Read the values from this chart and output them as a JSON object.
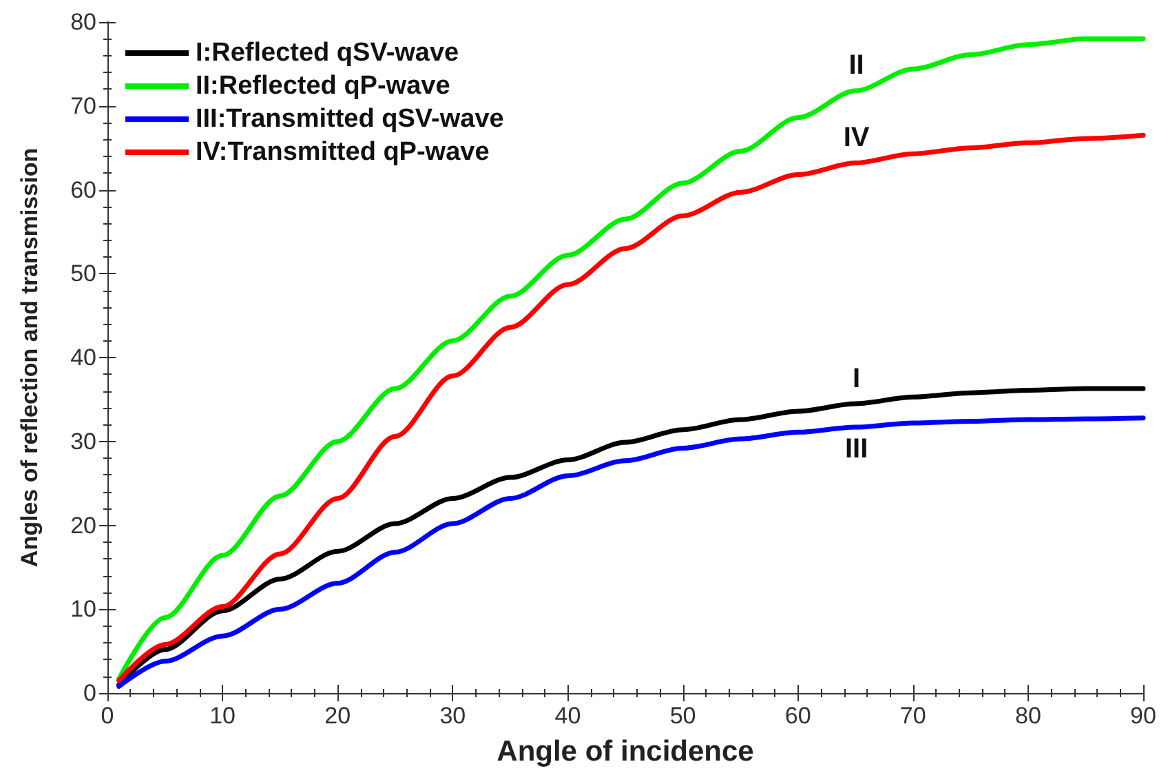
{
  "chart_data": {
    "type": "line",
    "xlabel": "Angle of incidence",
    "ylabel": "Angles of reflection and transmission",
    "x": [
      1,
      5,
      10,
      15,
      20,
      25,
      30,
      35,
      40,
      45,
      50,
      55,
      60,
      65,
      70,
      75,
      80,
      85,
      90
    ],
    "series": [
      {
        "name": "I:Reflected qSV-wave",
        "color": "#000000",
        "values": [
          1.0,
          5.2,
          9.8,
          13.6,
          16.9,
          20.2,
          23.2,
          25.7,
          27.8,
          29.9,
          31.4,
          32.6,
          33.6,
          34.5,
          35.3,
          35.8,
          36.1,
          36.3,
          36.3
        ]
      },
      {
        "name": "II:Reflected qP-wave",
        "color": "#00ee00",
        "values": [
          1.7,
          9.0,
          16.4,
          23.5,
          30.0,
          36.3,
          42.0,
          47.3,
          52.2,
          56.5,
          60.8,
          64.6,
          68.6,
          71.8,
          74.4,
          76.1,
          77.3,
          78.0,
          78.0
        ]
      },
      {
        "name": "III:Transmitted qSV-wave",
        "color": "#0000ff",
        "values": [
          0.8,
          3.8,
          6.8,
          10.0,
          13.1,
          16.8,
          20.2,
          23.2,
          25.9,
          27.7,
          29.2,
          30.3,
          31.1,
          31.7,
          32.2,
          32.4,
          32.6,
          32.7,
          32.8
        ]
      },
      {
        "name": "IV:Transmitted qP-wave",
        "color": "#ff0000",
        "values": [
          1.5,
          5.8,
          10.3,
          16.6,
          23.2,
          30.6,
          37.8,
          43.6,
          48.7,
          53.0,
          56.9,
          59.7,
          61.8,
          63.2,
          64.3,
          65.0,
          65.6,
          66.1,
          66.5
        ]
      }
    ],
    "xlim": [
      0,
      90
    ],
    "xticks": [
      0,
      10,
      20,
      30,
      40,
      50,
      60,
      70,
      80,
      90
    ],
    "ylim": [
      0,
      80
    ],
    "yticks": [
      0,
      10,
      20,
      30,
      40,
      50,
      60,
      70,
      80
    ],
    "grid": false,
    "legend": "top left",
    "marker": "none",
    "line_style": "solid",
    "annotations": [
      "I",
      "II",
      "III",
      "IV"
    ]
  }
}
